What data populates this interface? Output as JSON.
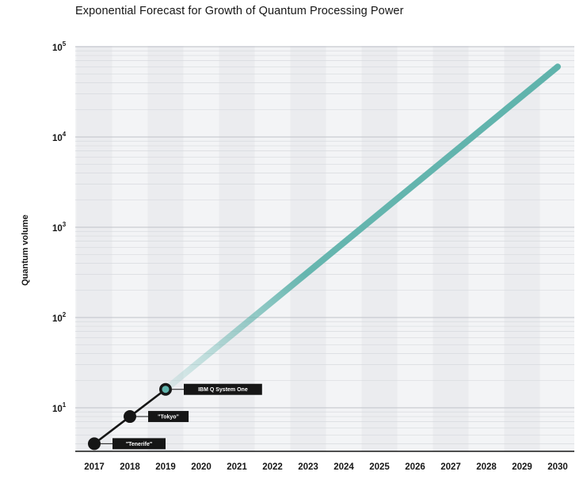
{
  "chart_data": {
    "type": "line",
    "title": "Exponential Forecast for Growth of Quantum Processing Power",
    "xlabel": "",
    "ylabel": "Quantum volume",
    "x_ticks": [
      "2017",
      "2018",
      "2019",
      "2020",
      "2021",
      "2022",
      "2023",
      "2024",
      "2025",
      "2026",
      "2027",
      "2028",
      "2029",
      "2030"
    ],
    "y_scale": "log",
    "ylim": [
      2.6,
      120000
    ],
    "y_ticks": [
      {
        "base": "10",
        "exp": "1",
        "value": 10
      },
      {
        "base": "10",
        "exp": "2",
        "value": 100
      },
      {
        "base": "10",
        "exp": "3",
        "value": 1000
      },
      {
        "base": "10",
        "exp": "4",
        "value": 10000
      },
      {
        "base": "10",
        "exp": "5",
        "value": 100000
      }
    ],
    "series": [
      {
        "kind": "actual",
        "color": "#161616",
        "points": [
          {
            "x": 2017,
            "y": 4,
            "label": "\"Tenerife\""
          },
          {
            "x": 2018,
            "y": 8,
            "label": "\"Tokyo\""
          },
          {
            "x": 2019,
            "y": 16,
            "label": "IBM Q System One"
          }
        ]
      },
      {
        "kind": "forecast",
        "color": "#5fb3ac",
        "points": [
          {
            "x": 2019,
            "y": 16
          },
          {
            "x": 2030,
            "y": 60000
          }
        ]
      }
    ],
    "grid": true,
    "legend": "none"
  }
}
